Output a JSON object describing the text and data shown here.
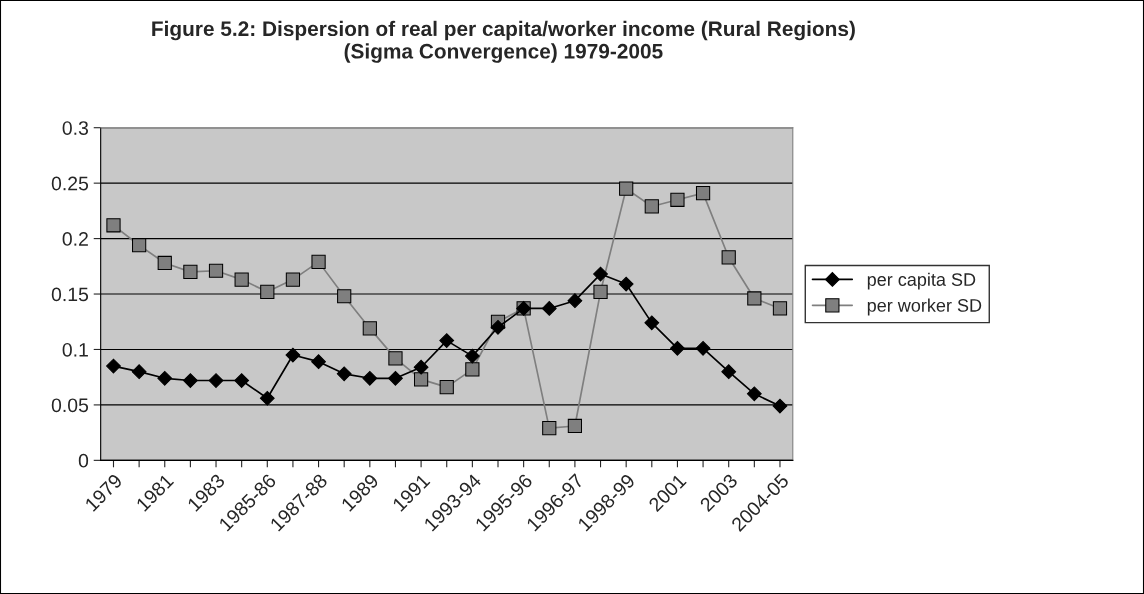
{
  "chart_data": {
    "type": "line",
    "title": "Figure 5.2: Dispersion of real per capita/worker income (Rural Regions)\n(Sigma Convergence) 1979-2005",
    "categories": [
      "1979",
      null,
      "1981",
      null,
      "1983",
      null,
      "1985-86",
      null,
      "1987-88",
      null,
      "1989",
      null,
      "1991",
      null,
      "1993-94",
      null,
      "1995-96",
      null,
      "1996-97",
      null,
      "1998-99",
      null,
      "2001",
      null,
      "2003",
      null,
      "2004-05"
    ],
    "series": [
      {
        "name": "per capita SD",
        "color": "#000000",
        "marker": "diamond",
        "values": [
          0.085,
          0.08,
          0.074,
          0.072,
          0.072,
          0.072,
          0.056,
          0.095,
          0.089,
          0.078,
          0.074,
          0.074,
          0.084,
          0.108,
          0.094,
          0.12,
          0.137,
          0.137,
          0.144,
          0.168,
          0.159,
          0.124,
          0.101,
          0.101,
          0.08,
          0.06,
          0.049
        ]
      },
      {
        "name": "per worker SD",
        "color": "#7f7f7f",
        "marker": "square",
        "values": [
          0.212,
          0.194,
          0.178,
          0.17,
          0.171,
          0.163,
          0.152,
          0.163,
          0.179,
          0.148,
          0.119,
          0.092,
          0.073,
          0.066,
          0.082,
          0.125,
          0.137,
          0.029,
          0.031,
          0.152,
          0.245,
          0.229,
          0.235,
          0.241,
          0.183,
          0.146,
          0.137
        ]
      }
    ],
    "ylim": [
      0,
      0.3
    ],
    "yticks": [
      0,
      0.05,
      0.1,
      0.15,
      0.2,
      0.25,
      0.3
    ],
    "grid": "y",
    "legend": "right"
  }
}
